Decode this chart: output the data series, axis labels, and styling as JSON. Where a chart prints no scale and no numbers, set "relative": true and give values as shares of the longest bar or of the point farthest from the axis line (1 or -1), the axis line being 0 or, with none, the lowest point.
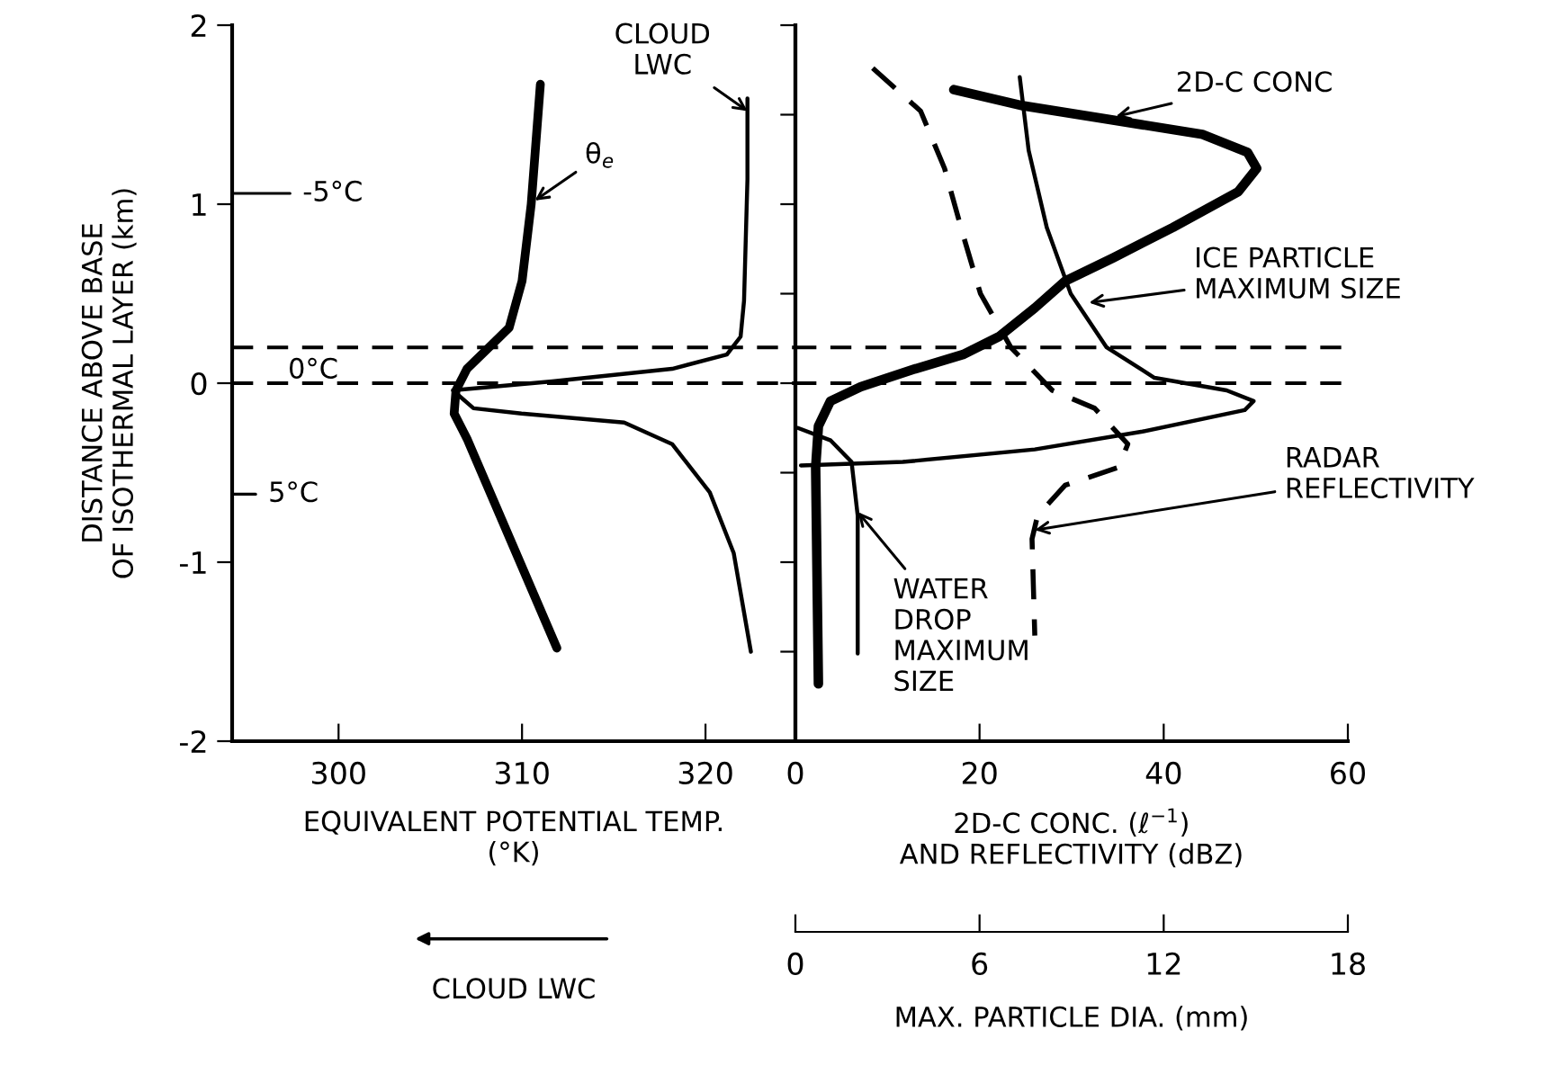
{
  "chart_data": [
    {
      "type": "line",
      "orientation": "horizontal",
      "xlabel": "EQUIVALENT POTENTIAL TEMP.\n(°K)",
      "ylabel": "DISTANCE ABOVE BASE\nOF ISOTHERMAL LAYER (km)",
      "xlim": [
        294.2,
        324.9
      ],
      "xticks": [
        300,
        310,
        320
      ],
      "ylim": [
        -2,
        2
      ],
      "yticks": [
        2,
        1,
        0,
        {
          "value": -1,
          "label": "-1"
        },
        {
          "value": -2,
          "label": "-2"
        }
      ],
      "grid": false,
      "legend": false,
      "marker": "none",
      "series": [
        {
          "color": "#000000",
          "line_style": "solid",
          "x": [
            1.67,
            1.0,
            0.57,
            0.31,
            0.23,
            0.08,
            -0.04,
            -0.17,
            -0.31,
            -1.48
          ],
          "values": [
            311.0,
            310.5,
            310.0,
            309.3,
            308.5,
            307.0,
            306.4,
            306.3,
            307.0,
            311.9
          ]
        }
      ],
      "ref_lines": [
        {
          "axis": "y",
          "value": 0.2,
          "color": "#000000",
          "line_style": "dashed"
        },
        {
          "axis": "y",
          "value": 0,
          "color": "#000000",
          "line_style": "dashed"
        }
      ],
      "annotations": [
        {
          "text": "θ$_{e}$",
          "x": 310.7,
          "y": 1.02
        },
        "-5°C",
        "0°C",
        "5°C"
      ]
    },
    {
      "type": "line",
      "orientation": "horizontal",
      "relative": true,
      "xlabel": "CLOUD LWC",
      "ylim": [
        -2,
        2
      ],
      "tick_labels": false,
      "marker": "none",
      "series": [
        {
          "color": "#000000",
          "line_style": "solid",
          "x": [
            1.59,
            1.14,
            0.46,
            0.26,
            0.16,
            0.08,
            0.01,
            -0.04,
            -0.14,
            -0.17,
            -0.22,
            -0.34,
            -0.61,
            -0.95,
            -1.5
          ],
          "values": [
            -0.14,
            -0.14,
            -0.15,
            -0.16,
            -0.2,
            -0.36,
            -0.71,
            -1.0,
            -0.94,
            -0.8,
            -0.5,
            -0.36,
            -0.25,
            -0.18,
            -0.13
          ]
        }
      ],
      "annotations": [
        {
          "text": "CLOUD\nLWC",
          "x": -0.14,
          "y": 1.52
        }
      ]
    },
    {
      "type": "line",
      "orientation": "horizontal",
      "xlabel": "2D-C CONC. (ℓ$^{−1}$)\nAND REFLECTIVITY (dBZ)",
      "x2label": "MAX. PARTICLE DIA. (mm)",
      "xlim": [
        0,
        60
      ],
      "xticks": [
        0,
        20,
        40,
        60
      ],
      "x2lim": [
        0,
        18
      ],
      "x2ticks": [
        0,
        6,
        12,
        18
      ],
      "ylim": [
        -2,
        2
      ],
      "tick_labels": "x",
      "grid": false,
      "legend": false,
      "marker": "none",
      "series": [
        {
          "color": "#000000",
          "line_style": "solid",
          "x": [
            1.64,
            1.55,
            1.47,
            1.39,
            1.29,
            1.2,
            1.07,
            0.87,
            0.7,
            0.57,
            0.42,
            0.26,
            0.16,
            0.08,
            -0.02,
            -0.1,
            -0.24,
            -0.47,
            -1.68
          ],
          "values": [
            17.2,
            24.7,
            34.5,
            44.2,
            49.1,
            50.1,
            48.1,
            41.0,
            34.5,
            29.3,
            26.0,
            22.1,
            18.2,
            13.0,
            7.1,
            3.8,
            2.5,
            2.2,
            2.5
          ]
        },
        {
          "color": "#000000",
          "line_style": "dashed",
          "x": [
            1.76,
            1.52,
            1.2,
            0.83,
            0.5,
            0.2,
            -0.04,
            -0.14,
            -0.34,
            -0.47,
            -0.57,
            -0.74,
            -0.87,
            -1.41
          ],
          "values": [
            8.4,
            13.6,
            16.2,
            18.2,
            20.1,
            23.4,
            27.9,
            32.5,
            36.1,
            35.1,
            29.3,
            26.3,
            25.7,
            26.0
          ]
        },
        {
          "color": "#000000",
          "line_style": "solid",
          "axis": "x2",
          "x": [
            1.71,
            1.3,
            0.87,
            0.5,
            0.2,
            0.03,
            -0.04,
            -0.1,
            -0.15,
            -0.27,
            -0.37,
            -0.44,
            -0.46
          ],
          "values": [
            7.31,
            7.6,
            8.19,
            8.97,
            10.14,
            11.7,
            14.05,
            14.93,
            14.64,
            11.31,
            7.8,
            3.5,
            0.18
          ]
        },
        {
          "color": "#000000",
          "line_style": "solid",
          "axis": "x2",
          "x": [
            -0.25,
            -0.32,
            -0.44,
            -0.74,
            -1.51
          ],
          "values": [
            0.08,
            1.15,
            1.83,
            2.03,
            2.03
          ]
        }
      ],
      "ref_lines": [
        {
          "axis": "y",
          "value": 0.2,
          "color": "#000000",
          "line_style": "dashed"
        },
        {
          "axis": "y",
          "value": 0,
          "color": "#000000",
          "line_style": "dashed"
        }
      ],
      "annotations": [
        {
          "text": "2D-C CONC",
          "x": 34.8,
          "y": 1.49
        },
        {
          "text": "ICE PARTICLE\nMAXIMUM SIZE",
          "x": 31.9,
          "y": 0.45
        },
        {
          "text": "RADAR\nREFLECTIVITY",
          "x": 26.0,
          "y": -0.82
        },
        {
          "text": "WATER\nDROP\nMAXIMUM\nSIZE",
          "x": 6.8,
          "y": -0.72
        }
      ]
    }
  ]
}
